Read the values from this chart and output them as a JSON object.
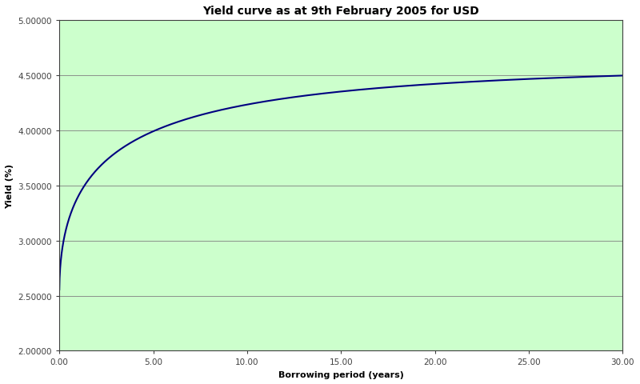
{
  "title": "Yield curve as at 9th February 2005 for USD",
  "xlabel": "Borrowing period (years)",
  "ylabel": "Yield (%)",
  "background_color": "#ccffcc",
  "fig_background_color": "#ffffff",
  "line_color": "#000080",
  "line_width": 1.5,
  "xlim": [
    0.0,
    30.0
  ],
  "ylim": [
    2.0,
    5.0
  ],
  "xticks": [
    0.0,
    5.0,
    10.0,
    15.0,
    20.0,
    25.0,
    30.0
  ],
  "yticks": [
    2.0,
    2.5,
    3.0,
    3.5,
    4.0,
    4.5,
    5.0
  ],
  "ytick_labels": [
    "2.00000",
    "2.50000",
    "3.00000",
    "3.50000",
    "4.00000",
    "4.50000",
    "5.00000"
  ],
  "xtick_labels": [
    "0.00",
    "5.00",
    "10.00",
    "15.00",
    "20.00",
    "25.00",
    "30.00"
  ],
  "curve_asymptote": 4.6,
  "curve_y0": 2.52,
  "curve_k": 1.2,
  "title_fontsize": 10,
  "axis_label_fontsize": 8,
  "tick_fontsize": 7.5,
  "grid_color": "#808080",
  "grid_linewidth": 0.6
}
